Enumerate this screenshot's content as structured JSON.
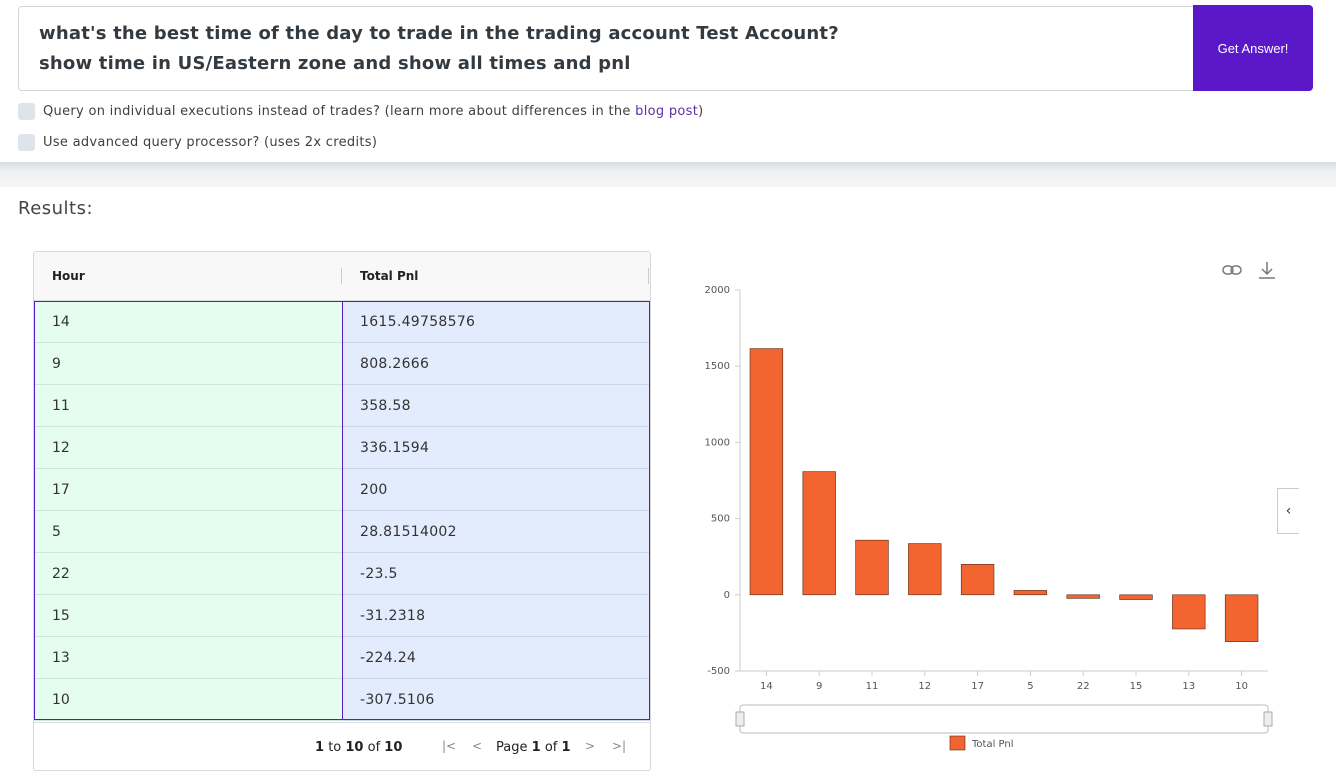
{
  "query": {
    "text": "what's the best time of the day to trade in the trading account Test Account?\nshow time in US/Eastern zone and show all times and pnl",
    "button_label": "Get Answer!"
  },
  "options": {
    "executions_label": "Query on individual executions instead of trades? (learn more about differences in the ",
    "executions_link": "blog post",
    "executions_suffix": ")",
    "advanced_label": "Use advanced query processor? (uses 2x credits)"
  },
  "results_label": "Results:",
  "table": {
    "columns": [
      "Hour",
      "Total Pnl"
    ],
    "rows": [
      [
        "14",
        "1615.49758576"
      ],
      [
        "9",
        "808.2666"
      ],
      [
        "11",
        "358.58"
      ],
      [
        "12",
        "336.1594"
      ],
      [
        "17",
        "200"
      ],
      [
        "5",
        "28.81514002"
      ],
      [
        "22",
        "-23.5"
      ],
      [
        "15",
        "-31.2318"
      ],
      [
        "13",
        "-224.24"
      ],
      [
        "10",
        "-307.5106"
      ]
    ],
    "pager": {
      "from": "1",
      "to": "10",
      "of": "10",
      "word_to": "to",
      "word_of": "of",
      "page_word": "Page",
      "page": "1",
      "page_of_word": "of",
      "pages": "1"
    }
  },
  "chart_data": {
    "type": "bar",
    "categories": [
      "14",
      "9",
      "11",
      "12",
      "17",
      "5",
      "22",
      "15",
      "13",
      "10"
    ],
    "series": [
      {
        "name": "Total Pnl",
        "values": [
          1615.49758576,
          808.2666,
          358.58,
          336.1594,
          200,
          28.81514002,
          -23.5,
          -31.2318,
          -224.24,
          -307.5106
        ],
        "color": "#f26430"
      }
    ],
    "ylim": [
      -500,
      2000
    ],
    "yticks": [
      -500,
      0,
      500,
      1000,
      1500,
      2000
    ],
    "legend": "bottom-center",
    "grid": false
  },
  "icons": {
    "link": "link-icon",
    "download": "download-icon",
    "collapse": "chevron-left-icon"
  },
  "colors": {
    "accent": "#5b18c9",
    "bar": "#f26430",
    "hour_col_bg": "#e5fdef",
    "pnl_col_bg": "#e3ecfd"
  }
}
